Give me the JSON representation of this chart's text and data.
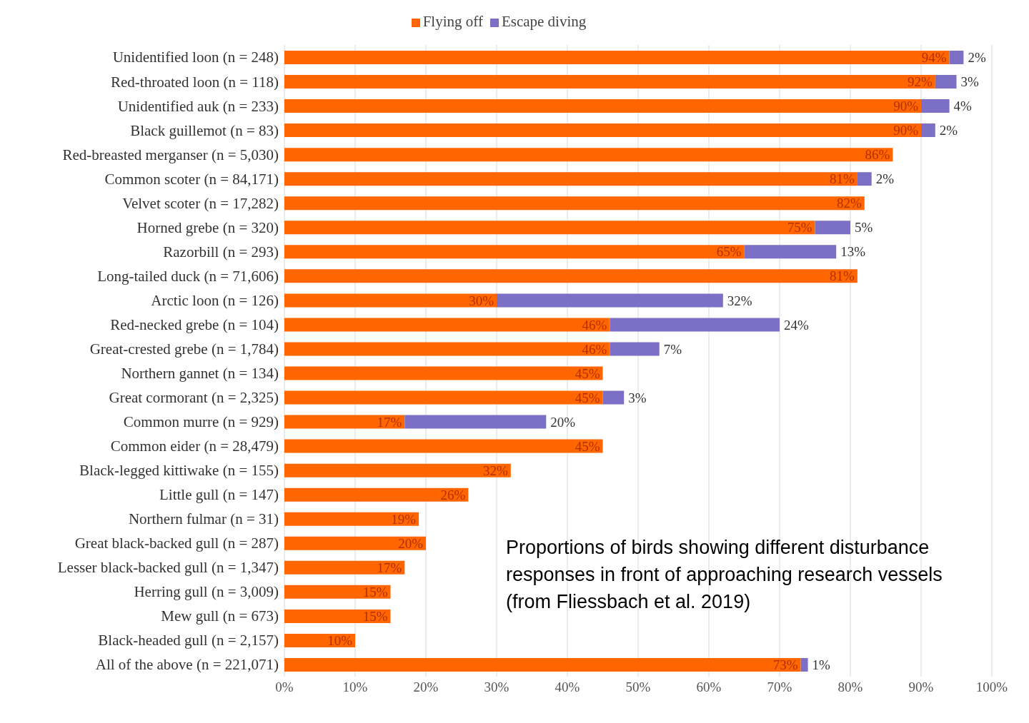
{
  "chart_data": {
    "type": "bar",
    "orientation": "horizontal",
    "stacked": true,
    "legend": "top",
    "grid": "x",
    "categories": [
      "Unidentified loon (n = 248)",
      "Red-throated loon (n = 118)",
      "Unidentified auk (n = 233)",
      "Black guillemot (n = 83)",
      "Red-breasted merganser (n = 5,030)",
      "Common scoter (n = 84,171)",
      "Velvet scoter (n = 17,282)",
      "Horned grebe (n = 320)",
      "Razorbill (n = 293)",
      "Long-tailed duck (n = 71,606)",
      "Arctic loon (n = 126)",
      "Red-necked grebe (n = 104)",
      "Great-crested grebe (n = 1,784)",
      "Northern gannet (n = 134)",
      "Great cormorant (n = 2,325)",
      "Common murre (n = 929)",
      "Common eider (n = 28,479)",
      "Black-legged kittiwake (n = 155)",
      "Little gull (n = 147)",
      "Northern fulmar (n = 31)",
      "Great black-backed gull (n = 287)",
      "Lesser black-backed gull (n = 1,347)",
      "Herring gull (n = 3,009)",
      "Mew gull (n = 673)",
      "Black-headed gull (n = 2,157)",
      "All of the above (n = 221,071)"
    ],
    "series": [
      {
        "name": "Flying off",
        "color": "#ff6600",
        "values": [
          94,
          92,
          90,
          90,
          86,
          81,
          82,
          75,
          65,
          81,
          30,
          46,
          46,
          45,
          45,
          17,
          45,
          32,
          26,
          19,
          20,
          17,
          15,
          15,
          10,
          73
        ],
        "value_labels": [
          "94%",
          "92%",
          "90%",
          "90%",
          "86%",
          "81%",
          "82%",
          "75%",
          "65%",
          "81%",
          "30%",
          "46%",
          "46%",
          "45%",
          "45%",
          "17%",
          "45%",
          "32%",
          "26%",
          "19%",
          "20%",
          "17%",
          "15%",
          "15%",
          "10%",
          "73%"
        ]
      },
      {
        "name": "Escape diving",
        "color": "#7b6fc6",
        "values": [
          2,
          3,
          4,
          2,
          null,
          2,
          null,
          5,
          13,
          null,
          32,
          24,
          7,
          null,
          3,
          20,
          null,
          null,
          null,
          null,
          null,
          null,
          null,
          null,
          null,
          1
        ],
        "value_labels": [
          "2%",
          "3%",
          "4%",
          "2%",
          null,
          "2%",
          null,
          "5%",
          "13%",
          null,
          "32%",
          "24%",
          "7%",
          null,
          "3%",
          "20%",
          null,
          null,
          null,
          null,
          null,
          null,
          null,
          null,
          null,
          "1%"
        ]
      }
    ],
    "xlim": [
      0,
      100
    ],
    "xticks": [
      {
        "value": 0,
        "label": "0%"
      },
      {
        "value": 10,
        "label": "10%"
      },
      {
        "value": 20,
        "label": "20%"
      },
      {
        "value": 30,
        "label": "30%"
      },
      {
        "value": 40,
        "label": "40%"
      },
      {
        "value": 50,
        "label": "50%"
      },
      {
        "value": 60,
        "label": "60%"
      },
      {
        "value": 70,
        "label": "70%"
      },
      {
        "value": 80,
        "label": "80%"
      },
      {
        "value": 90,
        "label": "90%"
      },
      {
        "value": 100,
        "label": "100%"
      }
    ],
    "annotations": [
      "Proportions of birds showing different disturbance responses in front of approaching research vessels (from Fliessbach et al. 2019)"
    ]
  }
}
